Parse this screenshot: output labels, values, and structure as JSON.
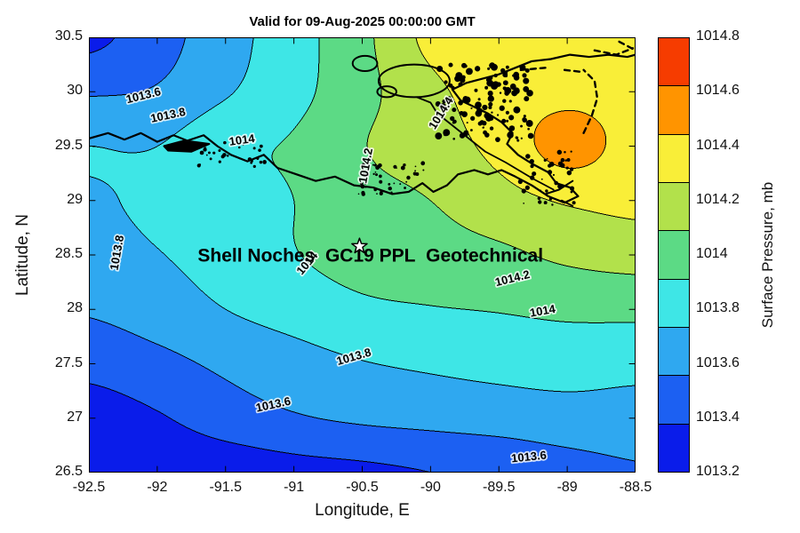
{
  "title": "Valid for 09-Aug-2025 00:00:00 GMT",
  "axes": {
    "x_label": "Longitude, E",
    "y_label": "Latitude, N",
    "x_range": [
      -92.5,
      -88.5
    ],
    "y_range": [
      26.5,
      30.5
    ],
    "x_ticks": [
      "-92.5",
      "-92",
      "-91.5",
      "-91",
      "-90.5",
      "-90",
      "-89.5",
      "-89",
      "-88.5"
    ],
    "x_tick_values": [
      -92.5,
      -92,
      -91.5,
      -91,
      -90.5,
      -90,
      -89.5,
      -89,
      -88.5
    ],
    "y_ticks": [
      "26.5",
      "27",
      "27.5",
      "28",
      "28.5",
      "29",
      "29.5",
      "30",
      "30.5"
    ],
    "y_tick_values": [
      26.5,
      27,
      27.5,
      28,
      28.5,
      29,
      29.5,
      30,
      30.5
    ]
  },
  "colorbar": {
    "label": "Surface Pressure, mb",
    "ticks": [
      "1013.2",
      "1013.4",
      "1013.6",
      "1013.8",
      "1014",
      "1014.2",
      "1014.4",
      "1014.6",
      "1014.8"
    ],
    "tick_values": [
      1013.2,
      1013.4,
      1013.6,
      1013.8,
      1014,
      1014.2,
      1014.4,
      1014.6,
      1014.8
    ],
    "range": [
      1013.2,
      1014.8
    ],
    "band_colors_bottom_to_top": [
      "#0a1cea",
      "#1c60f2",
      "#2fa8f0",
      "#3ee6e6",
      "#5cda85",
      "#b2e14b",
      "#f9ee38",
      "#ff9400",
      "#f63c00"
    ]
  },
  "annotation": {
    "text": "Shell Noches  GC19 PPL  Geotechnical",
    "lon": -90.44,
    "lat": 28.44,
    "star": {
      "lon": -90.52,
      "lat": 28.58
    }
  },
  "contour_labels": [
    {
      "text": "1013.6",
      "lon": -92.1,
      "lat": 29.96,
      "rot": -14
    },
    {
      "text": "1013.8",
      "lon": -91.92,
      "lat": 29.78,
      "rot": -12
    },
    {
      "text": "1014",
      "lon": -91.38,
      "lat": 29.55,
      "rot": -8
    },
    {
      "text": "1014.2",
      "lon": -90.47,
      "lat": 29.32,
      "rot": -80
    },
    {
      "text": "1014.4",
      "lon": -89.92,
      "lat": 29.8,
      "rot": -58
    },
    {
      "text": "1013.8",
      "lon": -92.29,
      "lat": 28.52,
      "rot": -80
    },
    {
      "text": "1014",
      "lon": -90.9,
      "lat": 28.42,
      "rot": -50
    },
    {
      "text": "1014.2",
      "lon": -89.4,
      "lat": 28.28,
      "rot": -14
    },
    {
      "text": "1014",
      "lon": -89.18,
      "lat": 27.98,
      "rot": -10
    },
    {
      "text": "1013.8",
      "lon": -90.56,
      "lat": 27.56,
      "rot": -16
    },
    {
      "text": "1013.6",
      "lon": -91.15,
      "lat": 27.12,
      "rot": -12
    },
    {
      "text": "1013.6",
      "lon": -89.28,
      "lat": 26.64,
      "rot": -6
    }
  ],
  "chart_data": {
    "type": "filled_contour",
    "title": "Valid for 09-Aug-2025 00:00:00 GMT",
    "xlabel": "Longitude, E",
    "ylabel": "Latitude, N",
    "units": "mb",
    "contour_levels": [
      1013.2,
      1013.4,
      1013.6,
      1013.8,
      1014,
      1014.2,
      1014.4,
      1014.6,
      1014.8
    ],
    "band_colors": [
      "#0a1cea",
      "#1c60f2",
      "#2fa8f0",
      "#3ee6e6",
      "#5cda85",
      "#b2e14b",
      "#f9ee38",
      "#ff9400",
      "#f63c00"
    ],
    "lon": [
      -92.5,
      -92,
      -91.5,
      -91,
      -90.5,
      -90,
      -89.5,
      -89,
      -88.5
    ],
    "lat_top_to_bottom": [
      30.5,
      30,
      29.5,
      29,
      28.5,
      28,
      27.5,
      27,
      26.5
    ],
    "pressure_mb": [
      [
        1013.35,
        1013.52,
        1013.72,
        1013.92,
        1014.15,
        1014.45,
        1014.52,
        1014.55,
        1014.5
      ],
      [
        1013.58,
        1013.62,
        1013.78,
        1013.94,
        1014.14,
        1014.35,
        1014.5,
        1014.55,
        1014.52
      ],
      [
        1013.8,
        1013.8,
        1013.96,
        1014.02,
        1014.19,
        1014.3,
        1014.46,
        1014.68,
        1014.52
      ],
      [
        1013.77,
        1013.85,
        1013.93,
        1014.0,
        1014.13,
        1014.2,
        1014.32,
        1014.42,
        1014.45
      ],
      [
        1013.7,
        1013.79,
        1013.88,
        1013.99,
        1014.08,
        1014.12,
        1014.16,
        1014.24,
        1014.28
      ],
      [
        1013.62,
        1013.7,
        1013.8,
        1013.88,
        1013.96,
        1013.99,
        1014.01,
        1014.04,
        1014.05
      ],
      [
        1013.46,
        1013.54,
        1013.64,
        1013.72,
        1013.79,
        1013.83,
        1013.86,
        1013.88,
        1013.86
      ],
      [
        1013.3,
        1013.38,
        1013.5,
        1013.58,
        1013.63,
        1013.66,
        1013.69,
        1013.72,
        1013.72
      ],
      [
        1013.18,
        1013.24,
        1013.28,
        1013.33,
        1013.36,
        1013.4,
        1013.44,
        1013.52,
        1013.58
      ]
    ]
  },
  "map_overlay": {
    "coastline": [
      [
        -92.5,
        29.57
      ],
      [
        -92.36,
        29.62
      ],
      [
        -92.24,
        29.56
      ],
      [
        -92.12,
        29.62
      ],
      [
        -92.0,
        29.54
      ],
      [
        -91.88,
        29.6
      ],
      [
        -91.78,
        29.55
      ],
      [
        -91.66,
        29.6
      ],
      [
        -91.56,
        29.5
      ],
      [
        -91.46,
        29.42
      ],
      [
        -91.34,
        29.36
      ],
      [
        -91.22,
        29.42
      ],
      [
        -91.12,
        29.3
      ],
      [
        -90.98,
        29.24
      ],
      [
        -90.84,
        29.18
      ],
      [
        -90.7,
        29.22
      ],
      [
        -90.56,
        29.14
      ],
      [
        -90.42,
        29.12
      ],
      [
        -90.28,
        29.06
      ],
      [
        -90.16,
        29.08
      ],
      [
        -90.06,
        29.16
      ],
      [
        -89.98,
        29.08
      ],
      [
        -89.88,
        29.14
      ],
      [
        -89.8,
        29.24
      ],
      [
        -89.68,
        29.28
      ],
      [
        -89.58,
        29.24
      ],
      [
        -89.48,
        29.28
      ],
      [
        -89.38,
        29.22
      ],
      [
        -89.26,
        29.14
      ],
      [
        -89.14,
        29.04
      ],
      [
        -89.02,
        28.98
      ],
      [
        -88.92,
        29.04
      ],
      [
        -88.98,
        29.12
      ],
      [
        -89.08,
        29.16
      ],
      [
        -89.14,
        29.26
      ],
      [
        -89.26,
        29.34
      ],
      [
        -89.36,
        29.42
      ],
      [
        -89.44,
        29.52
      ],
      [
        -89.4,
        29.62
      ],
      [
        -89.48,
        29.72
      ],
      [
        -89.58,
        29.8
      ],
      [
        -89.68,
        29.86
      ],
      [
        -89.78,
        29.92
      ],
      [
        -89.84,
        30.02
      ],
      [
        -89.74,
        30.08
      ],
      [
        -89.62,
        30.12
      ],
      [
        -89.5,
        30.16
      ],
      [
        -89.38,
        30.22
      ],
      [
        -89.26,
        30.28
      ],
      [
        -89.12,
        30.3
      ],
      [
        -88.98,
        30.34
      ],
      [
        -88.84,
        30.32
      ],
      [
        -88.7,
        30.34
      ],
      [
        -88.56,
        30.32
      ],
      [
        -88.5,
        30.34
      ]
    ],
    "marsh_island": [
      [
        -91.95,
        29.5
      ],
      [
        -91.8,
        29.55
      ],
      [
        -91.62,
        29.52
      ],
      [
        -91.75,
        29.45
      ],
      [
        -91.92,
        29.46
      ]
    ],
    "river": [
      [
        -90.1,
        29.95
      ],
      [
        -90.0,
        29.9
      ],
      [
        -89.95,
        29.8
      ],
      [
        -89.85,
        29.7
      ],
      [
        -89.75,
        29.6
      ],
      [
        -89.6,
        29.45
      ],
      [
        -89.45,
        29.35
      ],
      [
        -89.25,
        29.2
      ],
      [
        -89.1,
        29.1
      ]
    ],
    "delta_spurs": [
      [
        [
          -89.16,
          29.06
        ],
        [
          -89.06,
          29.1
        ],
        [
          -88.96,
          29.18
        ]
      ],
      [
        [
          -89.04,
          29.0
        ],
        [
          -88.96,
          28.95
        ]
      ]
    ],
    "lakes": [
      {
        "lon": -90.12,
        "lat": 30.1,
        "rx": 0.26,
        "ry": 0.15
      },
      {
        "lon": -90.48,
        "lat": 30.26,
        "rx": 0.09,
        "ry": 0.07
      },
      {
        "lon": -90.32,
        "lat": 30.0,
        "rx": 0.07,
        "ry": 0.05
      }
    ],
    "dashed_islands": [
      [
        [
          -88.88,
          29.62
        ],
        [
          -88.82,
          29.78
        ],
        [
          -88.78,
          29.94
        ],
        [
          -88.8,
          30.1
        ],
        [
          -88.88,
          30.2
        ]
      ],
      [
        [
          -88.8,
          30.38
        ],
        [
          -88.64,
          30.34
        ],
        [
          -88.52,
          30.4
        ]
      ],
      [
        [
          -89.34,
          30.2
        ],
        [
          -89.16,
          30.22
        ]
      ],
      [
        [
          -89.02,
          30.2
        ],
        [
          -88.88,
          30.18
        ]
      ],
      [
        [
          -88.62,
          30.46
        ],
        [
          -88.5,
          30.38
        ]
      ]
    ],
    "speckle_clusters": [
      {
        "lon": [
          -89.95,
          -89.25
        ],
        "lat": [
          29.55,
          30.25
        ],
        "count": 130,
        "r": [
          1,
          4
        ],
        "seed": 7
      },
      {
        "lon": [
          -90.55,
          -90.05
        ],
        "lat": [
          29.05,
          29.35
        ],
        "count": 45,
        "r": [
          0.8,
          2.5
        ],
        "seed": 13
      },
      {
        "lon": [
          -91.7,
          -91.2
        ],
        "lat": [
          29.3,
          29.55
        ],
        "count": 30,
        "r": [
          0.8,
          2.5
        ],
        "seed": 21
      },
      {
        "lon": [
          -89.35,
          -88.95
        ],
        "lat": [
          28.95,
          29.45
        ],
        "count": 40,
        "r": [
          0.8,
          3
        ],
        "seed": 33
      }
    ]
  }
}
